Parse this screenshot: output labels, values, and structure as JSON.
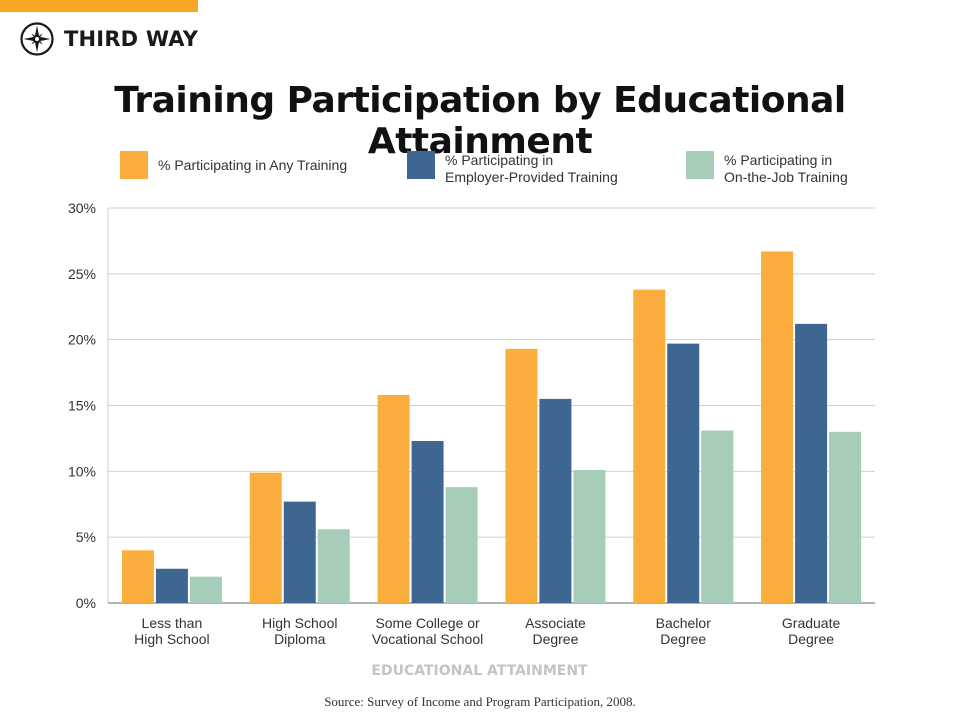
{
  "brand": {
    "name": "THIRD WAY",
    "accent_color": "#f5a623"
  },
  "title": "Training Participation by Educational Attainment",
  "source": "Source: Survey of Income and Program Participation, 2008.",
  "chart_data": {
    "type": "bar",
    "title": "Training Participation by Educational Attainment",
    "xlabel": "EDUCATIONAL ATTAINMENT",
    "ylabel": "",
    "ylim": [
      0,
      30
    ],
    "yticks": [
      0,
      5,
      10,
      15,
      20,
      25,
      30
    ],
    "ytick_labels": [
      "0%",
      "5%",
      "10%",
      "15%",
      "20%",
      "25%",
      "30%"
    ],
    "grid": true,
    "legend_position": "top",
    "categories": [
      [
        "Less than",
        "High School"
      ],
      [
        "High School",
        "Diploma"
      ],
      [
        "Some College or",
        "Vocational School"
      ],
      [
        "Associate",
        "Degree"
      ],
      [
        "Bachelor",
        "Degree"
      ],
      [
        "Graduate",
        "Degree"
      ]
    ],
    "series": [
      {
        "name": "% Participating in Any Training",
        "legend_label": "% Participating in Any Training",
        "color": "#fbae3d",
        "values": [
          4.0,
          9.9,
          15.8,
          19.3,
          23.8,
          26.7
        ]
      },
      {
        "name": "% Participating in Employer-Provided Training",
        "legend_label": "% Participating in\n Employer-Provided Training",
        "color": "#3d6690",
        "values": [
          2.6,
          7.7,
          12.3,
          15.5,
          19.7,
          21.2
        ]
      },
      {
        "name": "% Participating in On-the-Job Training",
        "legend_label": "% Participating in\n On-the-Job Training",
        "color": "#a6cdb8",
        "values": [
          2.0,
          5.6,
          8.8,
          10.1,
          13.1,
          13.0
        ]
      }
    ]
  }
}
